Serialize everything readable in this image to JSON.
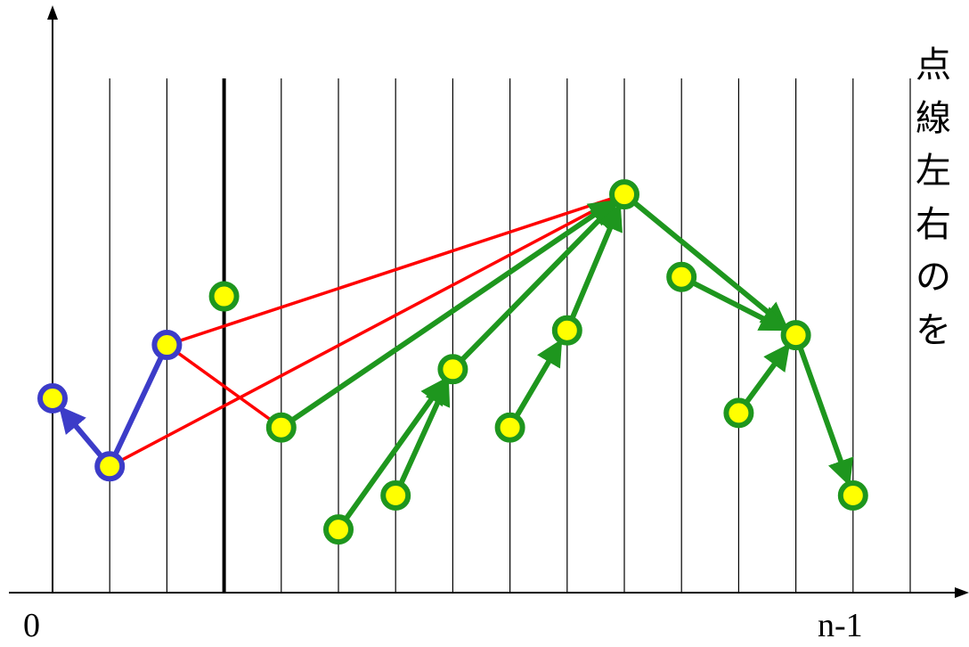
{
  "axis": {
    "x_start_label": "0",
    "x_end_label": "n-1"
  },
  "grid": {
    "column_count": 16,
    "thick_divider_after_column": 3
  },
  "side_text_lines": [
    "点",
    "線",
    "左",
    "右",
    "の",
    "を"
  ],
  "colors": {
    "blue": "#3c3cc8",
    "green": "#1e961e",
    "red": "#ff0000",
    "node_fill": "#ffff00",
    "grid_line": "#000000"
  },
  "nodes": [
    {
      "id": "b0",
      "col": 0,
      "level": 0.4,
      "ring": "blue"
    },
    {
      "id": "b1",
      "col": 1,
      "level": 0.26,
      "ring": "blue"
    },
    {
      "id": "b2",
      "col": 2,
      "level": 0.51,
      "ring": "blue"
    },
    {
      "id": "g3",
      "col": 3,
      "level": 0.61,
      "ring": "green"
    },
    {
      "id": "g4",
      "col": 4,
      "level": 0.34,
      "ring": "green"
    },
    {
      "id": "g5",
      "col": 5,
      "level": 0.13,
      "ring": "green"
    },
    {
      "id": "g6",
      "col": 6,
      "level": 0.2,
      "ring": "green"
    },
    {
      "id": "g7",
      "col": 7,
      "level": 0.46,
      "ring": "green"
    },
    {
      "id": "g8",
      "col": 8,
      "level": 0.34,
      "ring": "green"
    },
    {
      "id": "g9",
      "col": 9,
      "level": 0.54,
      "ring": "green"
    },
    {
      "id": "g10",
      "col": 10,
      "level": 0.82,
      "ring": "green"
    },
    {
      "id": "g11",
      "col": 11,
      "level": 0.65,
      "ring": "green"
    },
    {
      "id": "g12",
      "col": 12,
      "level": 0.37,
      "ring": "green"
    },
    {
      "id": "g13",
      "col": 13,
      "level": 0.53,
      "ring": "green"
    },
    {
      "id": "g14",
      "col": 14,
      "level": 0.2,
      "ring": "green"
    }
  ],
  "edges": [
    {
      "from": "b1",
      "to": "b0",
      "color": "blue",
      "arrow": true
    },
    {
      "from": "b1",
      "to": "b2",
      "color": "blue",
      "arrow": false
    },
    {
      "from": "b1",
      "to": "g10",
      "color": "red",
      "arrow": false
    },
    {
      "from": "b2",
      "to": "g10",
      "color": "red",
      "arrow": false
    },
    {
      "from": "b2",
      "to": "g4",
      "color": "red",
      "arrow": false
    },
    {
      "from": "g4",
      "to": "g10",
      "color": "green",
      "arrow": true
    },
    {
      "from": "g5",
      "to": "g7",
      "color": "green",
      "arrow": true
    },
    {
      "from": "g6",
      "to": "g7",
      "color": "green",
      "arrow": true
    },
    {
      "from": "g7",
      "to": "g10",
      "color": "green",
      "arrow": true
    },
    {
      "from": "g8",
      "to": "g9",
      "color": "green",
      "arrow": true
    },
    {
      "from": "g9",
      "to": "g10",
      "color": "green",
      "arrow": true
    },
    {
      "from": "g10",
      "to": "g13",
      "color": "green",
      "arrow": true
    },
    {
      "from": "g11",
      "to": "g13",
      "color": "green",
      "arrow": true
    },
    {
      "from": "g12",
      "to": "g13",
      "color": "green",
      "arrow": true
    },
    {
      "from": "g13",
      "to": "g14",
      "color": "green",
      "arrow": true
    }
  ]
}
